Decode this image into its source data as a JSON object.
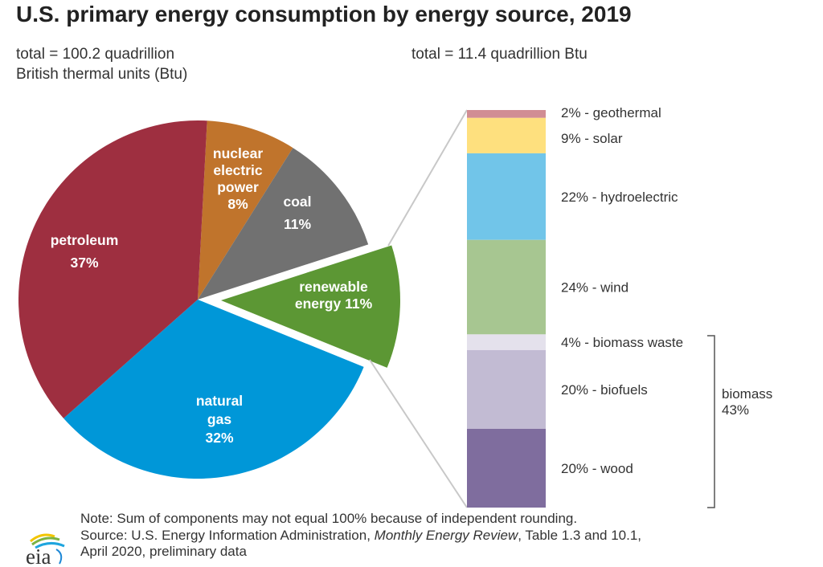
{
  "title": "U.S. primary energy consumption by energy source, 2019",
  "left_subtitle": [
    "total = 100.2 quadrillion",
    "British thermal units (Btu)"
  ],
  "right_subtitle": "total = 11.4 quadrillion Btu",
  "chart_data": [
    {
      "type": "pie",
      "total": "100.2 quadrillion Btu",
      "slices": [
        {
          "label": [
            "nuclear",
            "electric",
            "power",
            "8%"
          ],
          "name": "nuclear electric power",
          "value": 8,
          "color": "#c0742c"
        },
        {
          "label": [
            "coal",
            "11%"
          ],
          "name": "coal",
          "value": 11,
          "color": "#717171"
        },
        {
          "label": [
            "renewable",
            "energy 11%"
          ],
          "name": "renewable energy",
          "value": 11,
          "color": "#5c9734",
          "exploded": true
        },
        {
          "label": [
            "natural",
            "gas",
            "32%"
          ],
          "name": "natural gas",
          "value": 32,
          "color": "#0097d8"
        },
        {
          "label": [
            "petroleum",
            "37%"
          ],
          "name": "petroleum",
          "value": 37,
          "color": "#9e2f40"
        }
      ]
    },
    {
      "type": "stacked_bar",
      "total": "11.4 quadrillion Btu",
      "segments": [
        {
          "label": "2% - geothermal",
          "name": "geothermal",
          "value": 2,
          "color": "#d18d94"
        },
        {
          "label": "9% - solar",
          "name": "solar",
          "value": 9,
          "color": "#fee07e"
        },
        {
          "label": "22% - hydroelectric",
          "name": "hydroelectric",
          "value": 22,
          "color": "#71c5e9"
        },
        {
          "label": "24% - wind",
          "name": "wind",
          "value": 24,
          "color": "#a7c691"
        },
        {
          "label": "4% - biomass waste",
          "name": "biomass waste",
          "value": 4,
          "color": "#e4e1ec"
        },
        {
          "label": "20% - biofuels",
          "name": "biofuels",
          "value": 20,
          "color": "#c2bbd3"
        },
        {
          "label": "20% - wood",
          "name": "wood",
          "value": 20,
          "color": "#7f6d9e"
        }
      ],
      "bracket": {
        "label": [
          "biomass",
          "43%"
        ],
        "value": 43
      }
    }
  ],
  "note": "Note: Sum of components may not equal 100% because of independent rounding.",
  "source_prefix": "Source: U.S. Energy Information Administration, ",
  "source_italic": "Monthly Energy Review",
  "source_suffix": ", Table 1.3 and 10.1,",
  "source_line2": "April 2020, preliminary data",
  "logo_text": "eia"
}
